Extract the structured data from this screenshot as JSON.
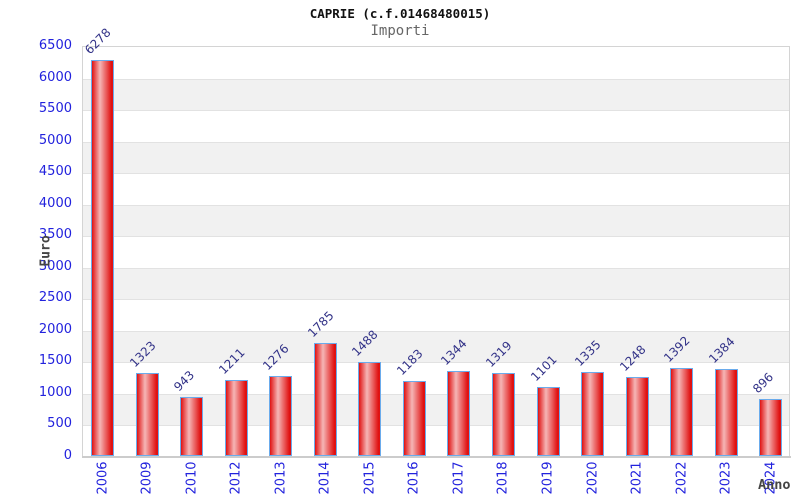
{
  "title": "CAPRIE (c.f.01468480015)",
  "subtitle": "Importi",
  "chart_data": {
    "type": "bar",
    "title": "CAPRIE (c.f.01468480015)",
    "subtitle": "Importi",
    "xlabel": "Anno",
    "ylabel": "Euro",
    "categories": [
      "2006",
      "2009",
      "2010",
      "2012",
      "2013",
      "2014",
      "2015",
      "2016",
      "2017",
      "2018",
      "2019",
      "2020",
      "2021",
      "2022",
      "2023",
      "2024"
    ],
    "values": [
      6278,
      1323,
      943,
      1211,
      1276,
      1785,
      1488,
      1183,
      1344,
      1319,
      1101,
      1335,
      1248,
      1392,
      1384,
      896
    ],
    "ylim": [
      0,
      6500
    ],
    "ytick_step": 500,
    "yticks": [
      0,
      500,
      1000,
      1500,
      2000,
      2500,
      3000,
      3500,
      4000,
      4500,
      5000,
      5500,
      6000,
      6500
    ],
    "grid": "alternating-horizontal-bands",
    "legend_position": "none",
    "bar_value_labels_rotated_deg": -45,
    "x_tick_labels_rotated_deg": -90
  },
  "colors": {
    "bar_edge": "#e01212",
    "bar_mid": "#f5b6b6",
    "bar_border": "#6aabec",
    "tick_label": "#2222dd",
    "value_label": "#333388",
    "axis_label": "#444444",
    "title_color": "#111111",
    "subtitle_color": "#666666",
    "band_gray": "#f1f1f1",
    "grid_line": "#e2e2e2",
    "axis_line": "#cccccc"
  }
}
